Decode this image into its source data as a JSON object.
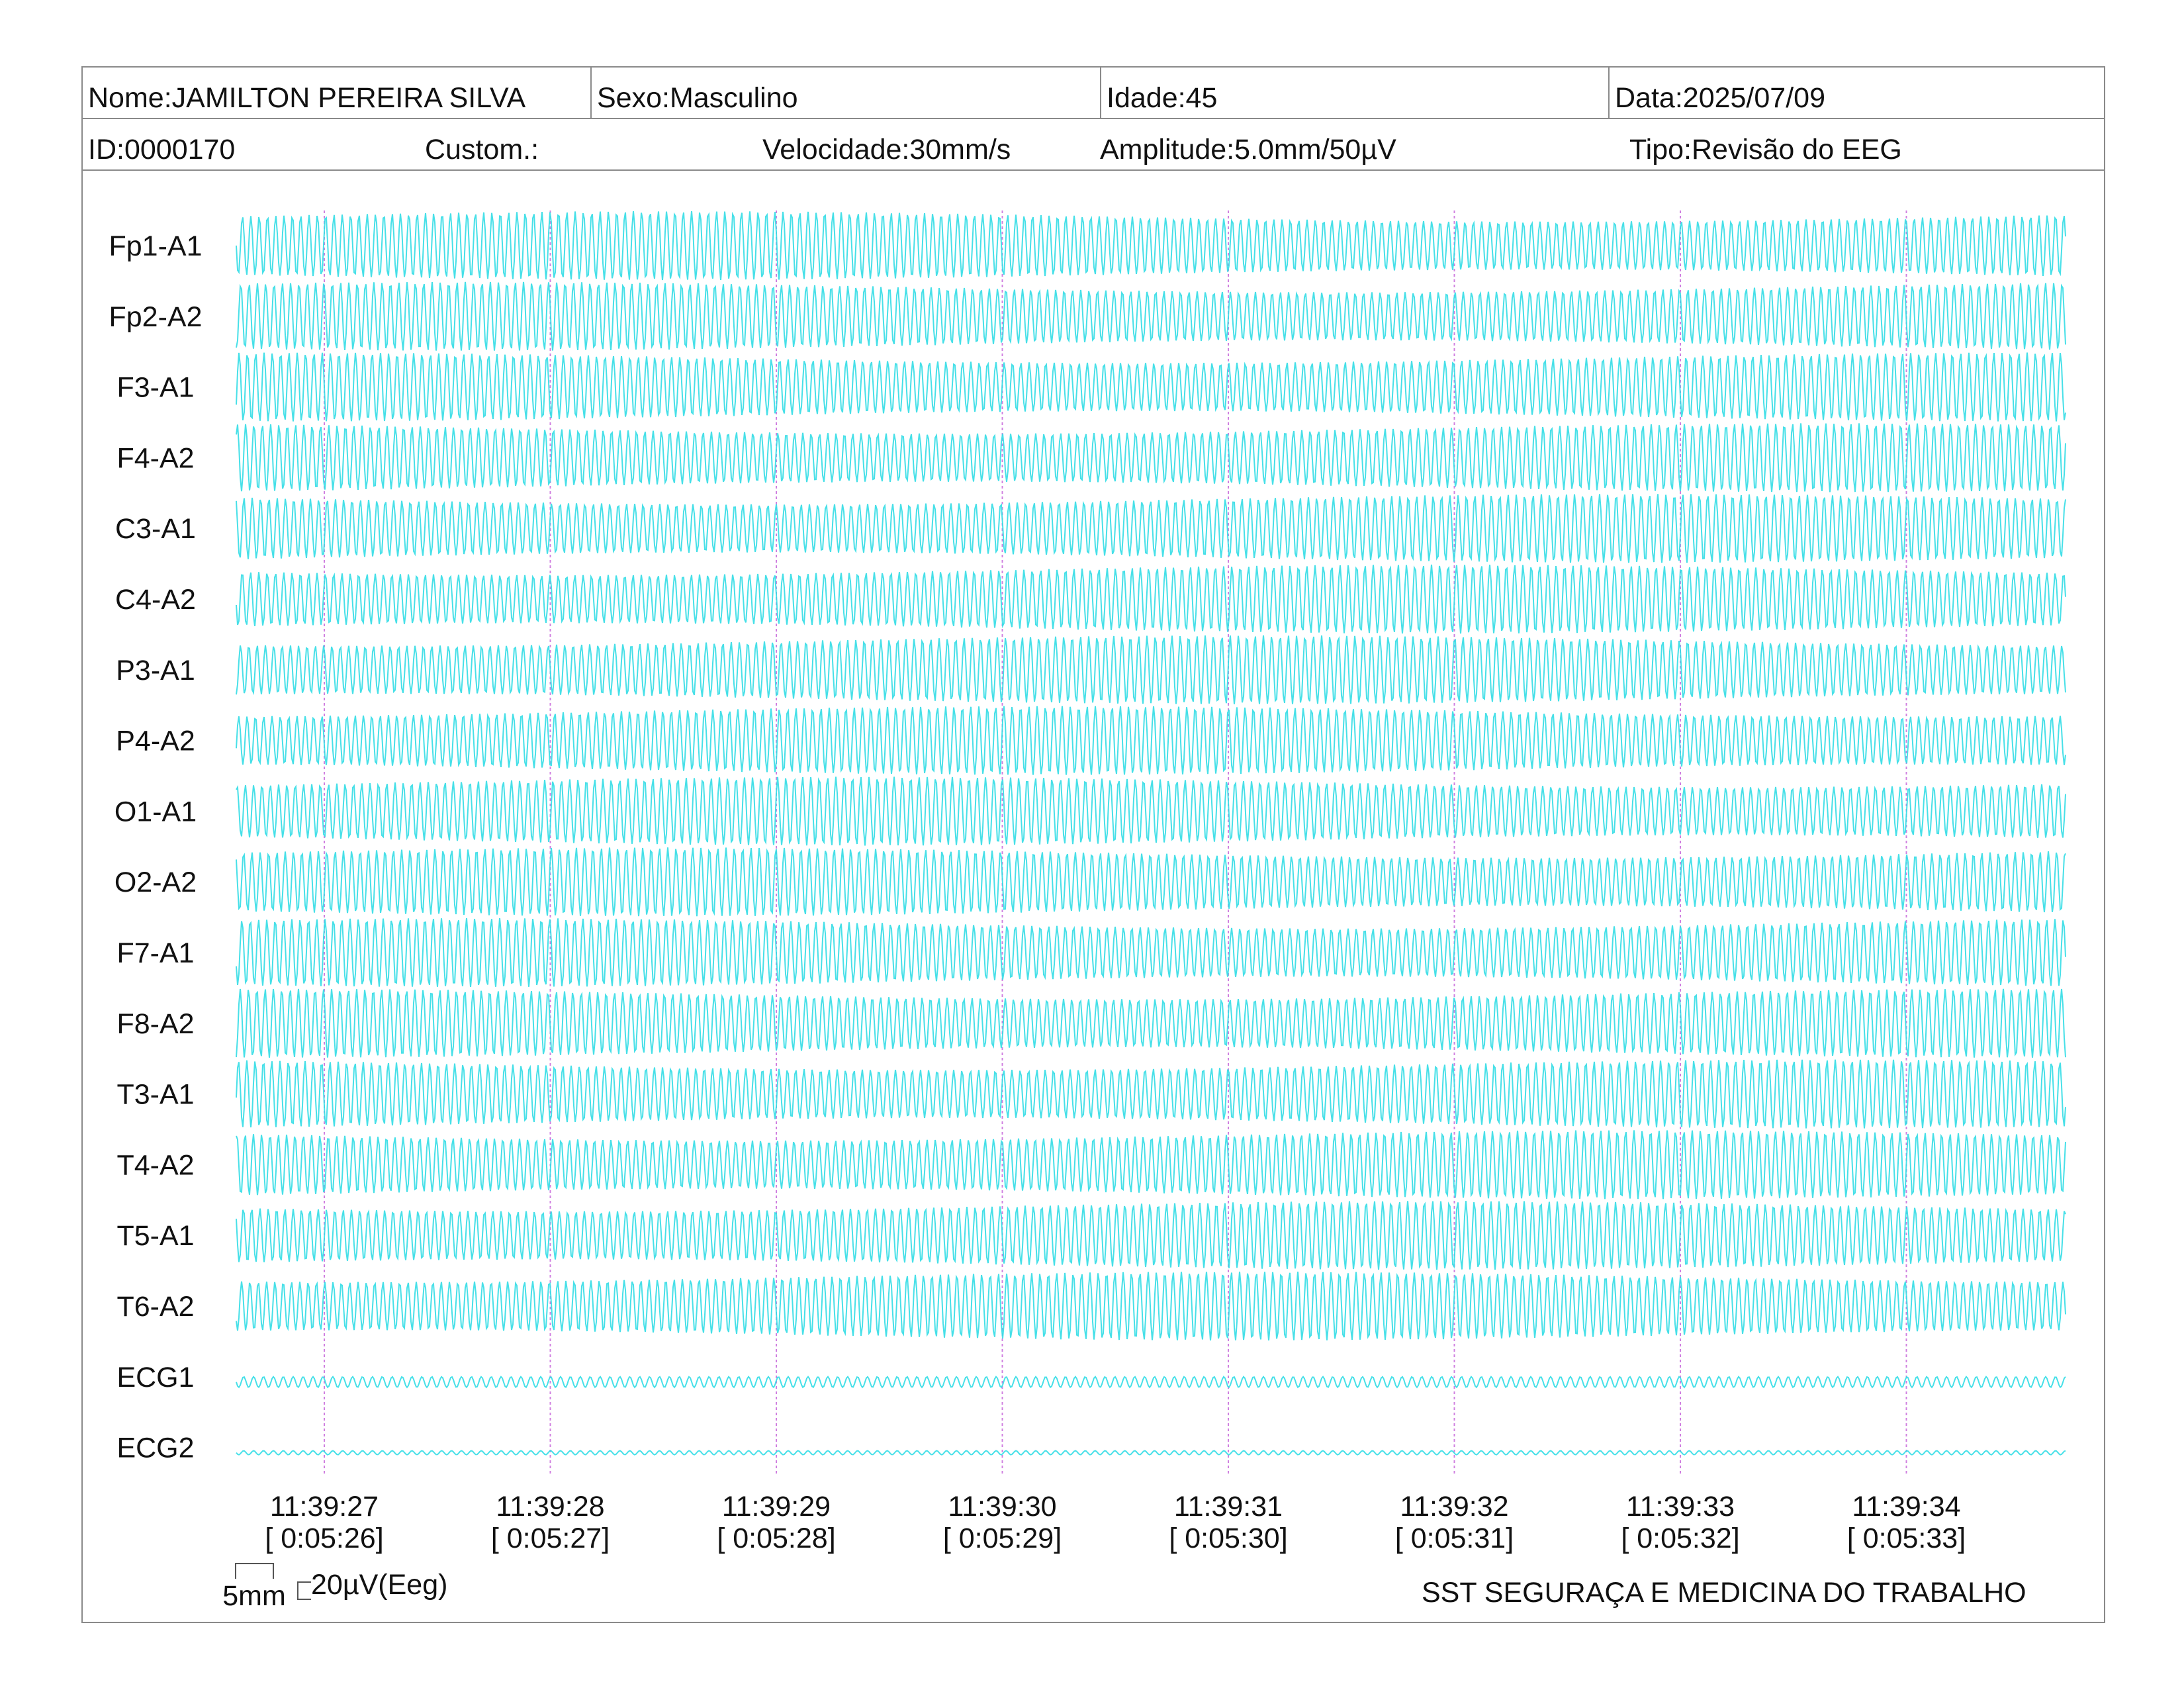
{
  "header": {
    "nome": "Nome:JAMILTON PEREIRA SILVA",
    "sexo": "Sexo:Masculino",
    "idade": "Idade:45",
    "data": "Data:2025/07/09",
    "id": "ID:0000170",
    "custom": "Custom.:",
    "velocidade": "Velocidade:30mm/s",
    "amplitude": "Amplitude:5.0mm/50µV",
    "tipo": "Tipo:Revisão do EEG"
  },
  "colors": {
    "trace": "#33dde6",
    "marker": "#d080e0",
    "border": "#8a8a8a"
  },
  "chart_data": {
    "type": "line",
    "title": "",
    "channels": [
      "Fp1-A1",
      "Fp2-A2",
      "F3-A1",
      "F4-A2",
      "C3-A1",
      "C4-A2",
      "P3-A1",
      "P4-A2",
      "O1-A1",
      "O2-A2",
      "F7-A1",
      "F8-A2",
      "T3-A1",
      "T4-A2",
      "T5-A1",
      "T6-A2",
      "ECG1",
      "ECG2"
    ],
    "time_ticks": [
      {
        "clock": "11:39:27",
        "elapsed": "[ 0:05:26]"
      },
      {
        "clock": "11:39:28",
        "elapsed": "[ 0:05:27]"
      },
      {
        "clock": "11:39:29",
        "elapsed": "[ 0:05:28]"
      },
      {
        "clock": "11:39:30",
        "elapsed": "[ 0:05:29]"
      },
      {
        "clock": "11:39:31",
        "elapsed": "[ 0:05:30]"
      },
      {
        "clock": "11:39:32",
        "elapsed": "[ 0:05:31]"
      },
      {
        "clock": "11:39:33",
        "elapsed": "[ 0:05:32]"
      },
      {
        "clock": "11:39:34",
        "elapsed": "[ 0:05:33]"
      }
    ],
    "time_axis": "seconds",
    "grid": false,
    "scale_bar": {
      "time_label": "5mm",
      "amp_label": "20µV(Eeg)"
    }
  },
  "footer": {
    "company": "SST SEGURAÇA E MEDICINA DO TRABALHO"
  }
}
